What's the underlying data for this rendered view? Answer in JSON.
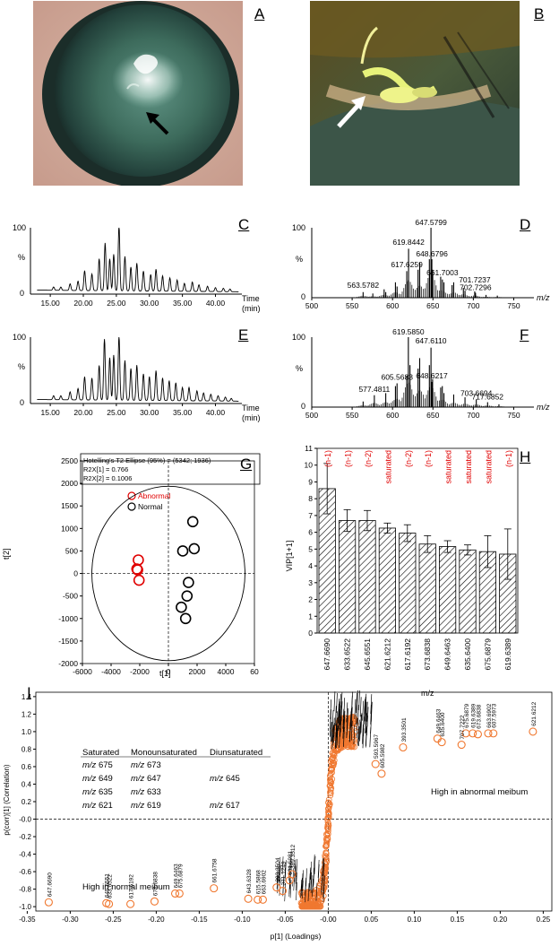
{
  "figure": {
    "panel_labels": {
      "A": "A",
      "B": "B",
      "C": "C",
      "D": "D",
      "E": "E",
      "F": "F",
      "G": "G",
      "H": "H",
      "I": "I"
    }
  },
  "panel_c": {
    "chart_data": {
      "type": "line",
      "title": "",
      "xlabel": "Time (min)",
      "ylabel": "%",
      "xlim": [
        12,
        44
      ],
      "ylim": [
        0,
        100
      ],
      "x_ticks": [
        "15.00",
        "20.00",
        "25.00",
        "30.00",
        "35.00",
        "40.00"
      ],
      "y_ticks": [
        "0",
        "100"
      ],
      "peaks": [
        [
          15.5,
          5
        ],
        [
          16.6,
          5
        ],
        [
          18,
          10
        ],
        [
          19.2,
          14
        ],
        [
          20.2,
          30
        ],
        [
          21.3,
          25
        ],
        [
          22.4,
          48
        ],
        [
          23.3,
          72
        ],
        [
          24,
          48
        ],
        [
          24.6,
          55
        ],
        [
          25.4,
          100
        ],
        [
          26.3,
          52
        ],
        [
          27.2,
          36
        ],
        [
          28.1,
          42
        ],
        [
          29.1,
          30
        ],
        [
          30.2,
          25
        ],
        [
          31,
          33
        ],
        [
          32,
          23
        ],
        [
          33.1,
          20
        ],
        [
          34.2,
          17
        ],
        [
          35.3,
          12
        ],
        [
          36.5,
          14
        ],
        [
          37.5,
          10
        ],
        [
          38.8,
          8
        ],
        [
          40,
          6
        ],
        [
          41.2,
          5
        ],
        [
          42.2,
          4
        ]
      ]
    },
    "xlabel_line1": "Time",
    "xlabel_line2": "(min)",
    "ylabel": "%",
    "y_top": "100",
    "y_bottom": "0"
  },
  "panel_e": {
    "chart_data": {
      "type": "line",
      "title": "",
      "xlabel": "Time (min)",
      "ylabel": "%",
      "xlim": [
        12,
        44
      ],
      "ylim": [
        0,
        100
      ],
      "x_ticks": [
        "15.00",
        "20.00",
        "25.00",
        "30.00",
        "35.00",
        "40.00"
      ],
      "y_ticks": [
        "0",
        "100"
      ],
      "peaks": [
        [
          15.5,
          6
        ],
        [
          16.6,
          6
        ],
        [
          18,
          12
        ],
        [
          19.2,
          17
        ],
        [
          20.2,
          35
        ],
        [
          21.3,
          33
        ],
        [
          22.4,
          52
        ],
        [
          23.2,
          92
        ],
        [
          24,
          64
        ],
        [
          24.6,
          68
        ],
        [
          25.4,
          98
        ],
        [
          26.3,
          60
        ],
        [
          27.2,
          48
        ],
        [
          28.1,
          53
        ],
        [
          29.1,
          40
        ],
        [
          30,
          36
        ],
        [
          31,
          45
        ],
        [
          32,
          34
        ],
        [
          33,
          30
        ],
        [
          34,
          27
        ],
        [
          35,
          20
        ],
        [
          36,
          20
        ],
        [
          37.2,
          15
        ],
        [
          38.2,
          12
        ],
        [
          39.3,
          10
        ],
        [
          40.4,
          8
        ],
        [
          41.5,
          6
        ],
        [
          42.4,
          4
        ]
      ]
    },
    "xlabel_line1": "Time",
    "xlabel_line2": "(min)",
    "ylabel": "%",
    "y_top": "100",
    "y_bottom": "0"
  },
  "panel_d": {
    "chart_data": {
      "type": "bar",
      "title": "",
      "xlabel": "m/z",
      "ylabel": "%",
      "xlim": [
        500,
        775
      ],
      "ylim": [
        0,
        100
      ],
      "x_ticks": [
        "500",
        "550",
        "600",
        "650",
        "700",
        "750"
      ],
      "peaks": [
        [
          563.5782,
          8
        ],
        [
          575.6,
          6
        ],
        [
          589.6,
          12
        ],
        [
          591.6,
          8
        ],
        [
          603.6,
          22
        ],
        [
          605.6,
          16
        ],
        [
          617.6259,
          38
        ],
        [
          619.6,
          25
        ],
        [
          619.8442,
          70
        ],
        [
          631.6,
          40
        ],
        [
          633.6,
          50
        ],
        [
          645.6,
          55
        ],
        [
          647.5799,
          100
        ],
        [
          648.6796,
          55
        ],
        [
          649.6,
          40
        ],
        [
          659.6,
          30
        ],
        [
          661.7003,
          26
        ],
        [
          663.6,
          22
        ],
        [
          673.7,
          18
        ],
        [
          675.7,
          22
        ],
        [
          687.7,
          14
        ],
        [
          689.7,
          10
        ],
        [
          701.7237,
          9
        ],
        [
          702.7296,
          7
        ],
        [
          715.7,
          4
        ],
        [
          729.7,
          3
        ]
      ],
      "labels": [
        [
          "563.5782",
          563.5782,
          10
        ],
        [
          "617.6259",
          617.6259,
          40
        ],
        [
          "619.8442",
          619.8442,
          72
        ],
        [
          "647.5799",
          647.5799,
          100
        ],
        [
          "648.6796",
          648.6796,
          55
        ],
        [
          "661.7003",
          661.7003,
          28
        ],
        [
          "701.7237",
          701.7237,
          18
        ],
        [
          "702.7296",
          702.7296,
          7
        ]
      ]
    },
    "xlabel": "m/z",
    "ylabel": "%",
    "y_top": "100",
    "y_bottom": "0"
  },
  "panel_f": {
    "chart_data": {
      "type": "bar",
      "title": "",
      "xlabel": "m/z",
      "ylabel": "%",
      "xlim": [
        500,
        775
      ],
      "ylim": [
        0,
        100
      ],
      "x_ticks": [
        "500",
        "550",
        "600",
        "650",
        "700",
        "750"
      ],
      "peaks": [
        [
          563.6,
          8
        ],
        [
          577.4811,
          17
        ],
        [
          591.6,
          20
        ],
        [
          603.6,
          30
        ],
        [
          605.5683,
          34
        ],
        [
          617.6,
          45
        ],
        [
          619.585,
          100
        ],
        [
          621.6,
          60
        ],
        [
          631.6,
          55
        ],
        [
          633.6,
          70
        ],
        [
          645.6,
          60
        ],
        [
          647.611,
          85
        ],
        [
          648.6217,
          36
        ],
        [
          649.6,
          40
        ],
        [
          659.6,
          28
        ],
        [
          661.6,
          30
        ],
        [
          663.6,
          20
        ],
        [
          675.7,
          18
        ],
        [
          689.7,
          14
        ],
        [
          703.6694,
          11
        ],
        [
          717.6852,
          7
        ],
        [
          731.7,
          4
        ]
      ],
      "labels": [
        [
          "577.4811",
          577.4811,
          18
        ],
        [
          "605.5683",
          605.5683,
          35
        ],
        [
          "619.5850",
          619.585,
          100
        ],
        [
          "647.6110",
          647.611,
          87
        ],
        [
          "648.6217",
          648.6217,
          37
        ],
        [
          "703.6694",
          703.6694,
          12
        ],
        [
          "717.6852",
          717.6852,
          7
        ]
      ]
    },
    "xlabel": "m/z",
    "ylabel": "%",
    "y_top": "100",
    "y_bottom": "0"
  },
  "panel_g": {
    "chart_data": {
      "type": "scatter",
      "title": "",
      "xlabel": "t[1]",
      "ylabel": "t[2]",
      "xlim": [
        -6000,
        6000
      ],
      "ylim": [
        -2000,
        2500
      ],
      "x_ticks": [
        "-6000",
        "-4000",
        "-2000",
        "0",
        "2000",
        "4000",
        "60"
      ],
      "y_ticks": [
        "-2000",
        "-1500",
        "-1000",
        "-500",
        "0",
        "500",
        "1000",
        "1500",
        "2000",
        "2500"
      ],
      "ellipse": {
        "a": 5342,
        "b": 1936
      },
      "series": [
        {
          "name": "Abnormal",
          "color": "#e00000",
          "points": [
            [
              -2100,
              300
            ],
            [
              -2150,
              80
            ],
            [
              -2050,
              -150
            ],
            [
              -2200,
              100
            ]
          ]
        },
        {
          "name": "Normal",
          "color": "#000000",
          "points": [
            [
              1700,
              1150
            ],
            [
              1800,
              550
            ],
            [
              1000,
              500
            ],
            [
              1400,
              -200
            ],
            [
              1300,
              -500
            ],
            [
              900,
              -750
            ],
            [
              1200,
              -1000
            ]
          ]
        }
      ]
    },
    "legend_line1": "Hotelling's T2 Ellipse (95%) = (5342; 1936)",
    "legend_line2": "R2X[1] = 0.766",
    "legend_line3": "R2X[2] = 0.1006",
    "series_abnormal": "Abnormal",
    "series_normal": "Normal",
    "xlabel": "t[1]",
    "ylabel": "t[2]"
  },
  "panel_h": {
    "chart_data": {
      "type": "bar",
      "title": "",
      "xlabel": "m/z",
      "ylabel": "VIP[1+1]",
      "ylim": [
        0,
        11
      ],
      "categories": [
        "647.6690",
        "633.6522",
        "645.6551",
        "621.6212",
        "617.6192",
        "673.6838",
        "649.6463",
        "635.6400",
        "675.6879",
        "619.6389"
      ],
      "values": [
        8.6,
        6.7,
        6.7,
        6.25,
        5.95,
        5.3,
        5.15,
        4.95,
        4.85,
        4.7
      ],
      "errors": [
        1.5,
        0.65,
        0.6,
        0.3,
        0.5,
        0.5,
        0.35,
        0.3,
        0.95,
        1.5
      ],
      "annotations": [
        "(n-1)",
        "(n-1)",
        "(n-2)",
        "saturated",
        "(n-2)",
        "(n-1)",
        "saturated",
        "saturated",
        "saturated",
        "(n-1)"
      ],
      "y_ticks": [
        "0",
        "1",
        "2",
        "3",
        "4",
        "5",
        "6",
        "7",
        "8",
        "9",
        "10",
        "11"
      ]
    },
    "xlabel": "m/z",
    "ylabel": "VIP[1+1]"
  },
  "panel_i": {
    "chart_data": {
      "type": "scatter",
      "title": "",
      "xlabel": "p[1] (Loadings)",
      "ylabel": "p(corr)[1] (Correlation)",
      "xlim": [
        -0.34,
        0.26
      ],
      "ylim": [
        -1.05,
        1.45
      ],
      "x_ticks": [
        "-0.35",
        "-0.30",
        "-0.25",
        "-0.20",
        "-0.15",
        "-0.10",
        "-0.05",
        "-0.00",
        "0.05",
        "0.10",
        "0.15",
        "0.20",
        "0.25"
      ],
      "y_ticks": [
        "-1.0",
        "-0.8",
        "-0.6",
        "-0.4",
        "-0.2",
        "-0.0",
        "0.2",
        "0.4",
        "0.6",
        "0.8",
        "1.0",
        "1.2",
        "1.4"
      ],
      "labeled_points": [
        [
          "647.6690",
          -0.325,
          -0.95
        ],
        [
          "645.6551",
          -0.258,
          -0.96
        ],
        [
          "633.6522",
          -0.255,
          -0.97
        ],
        [
          "617.6192",
          -0.23,
          -0.97
        ],
        [
          "673.6838",
          -0.202,
          -0.94
        ],
        [
          "649.6463",
          -0.178,
          -0.85
        ],
        [
          "675.6879",
          -0.173,
          -0.85
        ],
        [
          "661.6758",
          -0.133,
          -0.79
        ],
        [
          "643.6328",
          -0.093,
          -0.91
        ],
        [
          "615.5868",
          -0.082,
          -0.92
        ],
        [
          "663.6902",
          -0.076,
          -0.92
        ],
        [
          "393.3504",
          -0.06,
          -0.78
        ],
        [
          "371.1249",
          -0.053,
          -0.82
        ],
        [
          "601.5981",
          -0.045,
          -0.7
        ],
        [
          "389.3512",
          -0.042,
          -0.63
        ],
        [
          "393.3501",
          0.087,
          0.82
        ],
        [
          "649.6463",
          0.127,
          0.92
        ],
        [
          "635.6400",
          0.132,
          0.88
        ],
        [
          "675.6879",
          0.16,
          0.98
        ],
        [
          "707.7222",
          0.155,
          0.85
        ],
        [
          "619.6389",
          0.168,
          0.98
        ],
        [
          "673.6838",
          0.174,
          0.97
        ],
        [
          "663.6902",
          0.186,
          0.98
        ],
        [
          "607.5973",
          0.192,
          0.98
        ],
        [
          "621.6212",
          0.238,
          1.0
        ],
        [
          "605.5982",
          0.062,
          0.52
        ],
        [
          "593.5967",
          0.055,
          0.63
        ]
      ],
      "legend_header": [
        "Saturated",
        "Monounsaturated",
        "Diunsaturated"
      ],
      "legend_rows": [
        [
          "m/z 675",
          "m/z 673",
          ""
        ],
        [
          "m/z 649",
          "m/z 647",
          "m/z 645"
        ],
        [
          "m/z 635",
          "m/z 633",
          ""
        ],
        [
          "m/z 621",
          "m/z 619",
          "m/z 617"
        ]
      ]
    },
    "note_abnormal": "High in abnormal meibum",
    "note_normal": "High in normal meibum",
    "xlabel": "p[1] (Loadings)",
    "ylabel": "p(corr)[1] (Correlation)",
    "table_header": {
      "sat": "Saturated",
      "mono": "Monounsaturated",
      "di": "Diunsaturated"
    },
    "table_rows": [
      {
        "sat_pre": "m/z",
        "sat_val": " 675",
        "mono_pre": "m/z",
        "mono_val": " 673",
        "di_pre": "",
        "di_val": ""
      },
      {
        "sat_pre": "m/z",
        "sat_val": " 649",
        "mono_pre": "m/z",
        "mono_val": " 647",
        "di_pre": "m/z",
        "di_val": " 645"
      },
      {
        "sat_pre": "m/z",
        "sat_val": " 635",
        "mono_pre": "m/z",
        "mono_val": " 633",
        "di_pre": "",
        "di_val": ""
      },
      {
        "sat_pre": "m/z",
        "sat_val": " 621",
        "mono_pre": "m/z",
        "mono_val": " 619",
        "di_pre": "m/z",
        "di_val": " 617"
      }
    ]
  },
  "colors": {
    "accent_red": "#e00000",
    "orange_marker": "#f07830",
    "eye_green": "#2f5a48"
  }
}
